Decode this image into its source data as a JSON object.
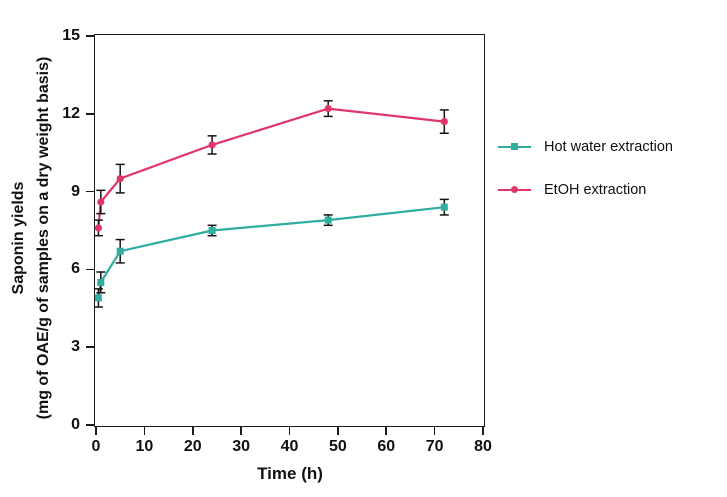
{
  "chart_data": {
    "type": "line",
    "title": "",
    "xlabel": "Time (h)",
    "ylabel_line1": "Saponin yields",
    "ylabel_line2": "(mg of OAE/g of samples on a dry weight basis)",
    "xlim": [
      0,
      80
    ],
    "ylim": [
      0,
      15
    ],
    "xticks": [
      0,
      10,
      20,
      30,
      40,
      50,
      60,
      70,
      80
    ],
    "yticks": [
      0,
      3,
      6,
      9,
      12,
      15
    ],
    "grid": false,
    "frame": "full-box",
    "legend_position": "right-outside",
    "x": [
      0.5,
      1,
      5,
      24,
      48,
      72
    ],
    "series": [
      {
        "name": "Hot water extraction",
        "color": "#2FAD9E",
        "marker": "square",
        "values": [
          4.9,
          5.5,
          6.7,
          7.5,
          7.9,
          8.4
        ],
        "errors": [
          0.35,
          0.4,
          0.45,
          0.2,
          0.2,
          0.3
        ]
      },
      {
        "name": "EtOH extraction",
        "color": "#E03568",
        "marker": "circle",
        "values": [
          7.6,
          8.6,
          9.5,
          10.8,
          12.2,
          11.7
        ],
        "errors": [
          0.3,
          0.45,
          0.55,
          0.35,
          0.3,
          0.45
        ]
      }
    ],
    "error_bar_color": "#141414",
    "axis_color": "#1b1b1b"
  }
}
